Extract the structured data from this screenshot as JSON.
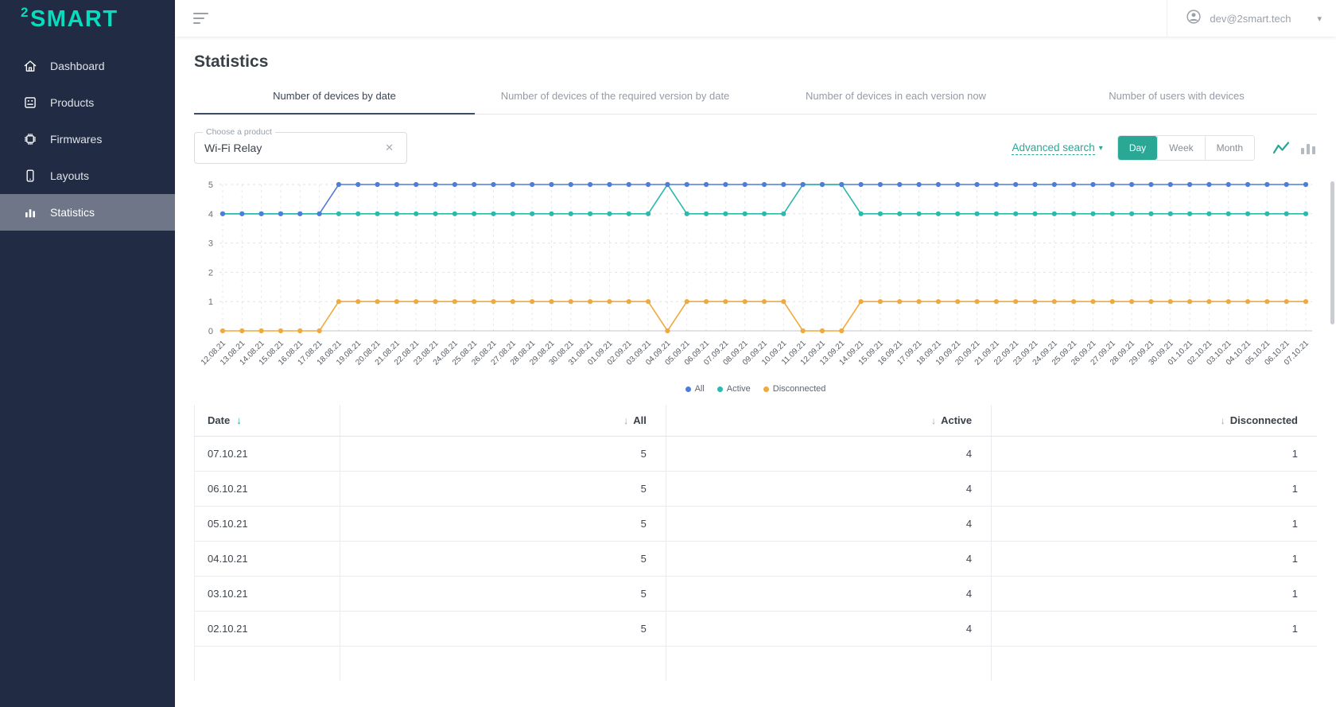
{
  "sidebar": {
    "logo_sup": "2",
    "logo_text": "SMART",
    "items": [
      {
        "label": "Dashboard",
        "icon": "home-icon",
        "active": false
      },
      {
        "label": "Products",
        "icon": "products-icon",
        "active": false
      },
      {
        "label": "Firmwares",
        "icon": "firmware-icon",
        "active": false
      },
      {
        "label": "Layouts",
        "icon": "layouts-icon",
        "active": false
      },
      {
        "label": "Statistics",
        "icon": "statistics-icon",
        "active": true
      }
    ]
  },
  "topbar": {
    "user_email": "dev@2smart.tech"
  },
  "page": {
    "title": "Statistics"
  },
  "tabs": [
    {
      "label": "Number of devices by date",
      "active": true
    },
    {
      "label": "Number of devices of the required version by date",
      "active": false
    },
    {
      "label": "Number of devices in each version now",
      "active": false
    },
    {
      "label": "Number of users with devices",
      "active": false
    }
  ],
  "filters": {
    "product_label": "Choose a product",
    "product_value": "Wi-Fi Relay",
    "advanced_search_label": "Advanced search",
    "period_options": [
      "Day",
      "Week",
      "Month"
    ],
    "period_selected": "Day"
  },
  "icons": {
    "clear": "✕",
    "caret_down": "▾",
    "sort_down": "↓"
  },
  "colors": {
    "accent_teal": "#2aa795",
    "series_all": "#4d7cdb",
    "series_active": "#2cb8aa",
    "series_disconnected": "#f2a93c",
    "logo_teal": "#08dcbd",
    "sidebar_navy": "#212c44"
  },
  "chart_data": {
    "type": "line",
    "title": "",
    "xlabel": "",
    "ylabel": "",
    "ylim": [
      0,
      5
    ],
    "yticks": [
      0,
      1,
      2,
      3,
      4,
      5
    ],
    "grid": true,
    "legend_position": "bottom",
    "x": [
      "12.08.21",
      "13.08.21",
      "14.08.21",
      "15.08.21",
      "16.08.21",
      "17.08.21",
      "18.08.21",
      "19.08.21",
      "20.08.21",
      "21.08.21",
      "22.08.21",
      "23.08.21",
      "24.08.21",
      "25.08.21",
      "26.08.21",
      "27.08.21",
      "28.08.21",
      "29.08.21",
      "30.08.21",
      "31.08.21",
      "01.09.21",
      "02.09.21",
      "03.09.21",
      "04.09.21",
      "05.09.21",
      "06.09.21",
      "07.09.21",
      "08.09.21",
      "09.09.21",
      "10.09.21",
      "11.09.21",
      "12.09.21",
      "13.09.21",
      "14.09.21",
      "15.09.21",
      "16.09.21",
      "17.09.21",
      "18.09.21",
      "19.09.21",
      "20.09.21",
      "21.09.21",
      "22.09.21",
      "23.09.21",
      "24.09.21",
      "25.09.21",
      "26.09.21",
      "27.09.21",
      "28.09.21",
      "29.09.21",
      "30.09.21",
      "01.10.21",
      "02.10.21",
      "03.10.21",
      "04.10.21",
      "05.10.21",
      "06.10.21",
      "07.10.21"
    ],
    "series": [
      {
        "name": "All",
        "color": "#4d7cdb",
        "values": [
          4,
          4,
          4,
          4,
          4,
          4,
          5,
          5,
          5,
          5,
          5,
          5,
          5,
          5,
          5,
          5,
          5,
          5,
          5,
          5,
          5,
          5,
          5,
          5,
          5,
          5,
          5,
          5,
          5,
          5,
          5,
          5,
          5,
          5,
          5,
          5,
          5,
          5,
          5,
          5,
          5,
          5,
          5,
          5,
          5,
          5,
          5,
          5,
          5,
          5,
          5,
          5,
          5,
          5,
          5,
          5,
          5
        ]
      },
      {
        "name": "Active",
        "color": "#2cb8aa",
        "values": [
          4,
          4,
          4,
          4,
          4,
          4,
          4,
          4,
          4,
          4,
          4,
          4,
          4,
          4,
          4,
          4,
          4,
          4,
          4,
          4,
          4,
          4,
          4,
          5,
          4,
          4,
          4,
          4,
          4,
          4,
          5,
          5,
          5,
          4,
          4,
          4,
          4,
          4,
          4,
          4,
          4,
          4,
          4,
          4,
          4,
          4,
          4,
          4,
          4,
          4,
          4,
          4,
          4,
          4,
          4,
          4,
          4
        ]
      },
      {
        "name": "Disconnected",
        "color": "#f2a93c",
        "values": [
          0,
          0,
          0,
          0,
          0,
          0,
          1,
          1,
          1,
          1,
          1,
          1,
          1,
          1,
          1,
          1,
          1,
          1,
          1,
          1,
          1,
          1,
          1,
          0,
          1,
          1,
          1,
          1,
          1,
          1,
          0,
          0,
          0,
          1,
          1,
          1,
          1,
          1,
          1,
          1,
          1,
          1,
          1,
          1,
          1,
          1,
          1,
          1,
          1,
          1,
          1,
          1,
          1,
          1,
          1,
          1,
          1
        ]
      }
    ]
  },
  "table": {
    "columns": [
      "Date",
      "All",
      "Active",
      "Disconnected"
    ],
    "rows": [
      [
        "07.10.21",
        "5",
        "4",
        "1"
      ],
      [
        "06.10.21",
        "5",
        "4",
        "1"
      ],
      [
        "05.10.21",
        "5",
        "4",
        "1"
      ],
      [
        "04.10.21",
        "5",
        "4",
        "1"
      ],
      [
        "03.10.21",
        "5",
        "4",
        "1"
      ],
      [
        "02.10.21",
        "5",
        "4",
        "1"
      ]
    ]
  }
}
